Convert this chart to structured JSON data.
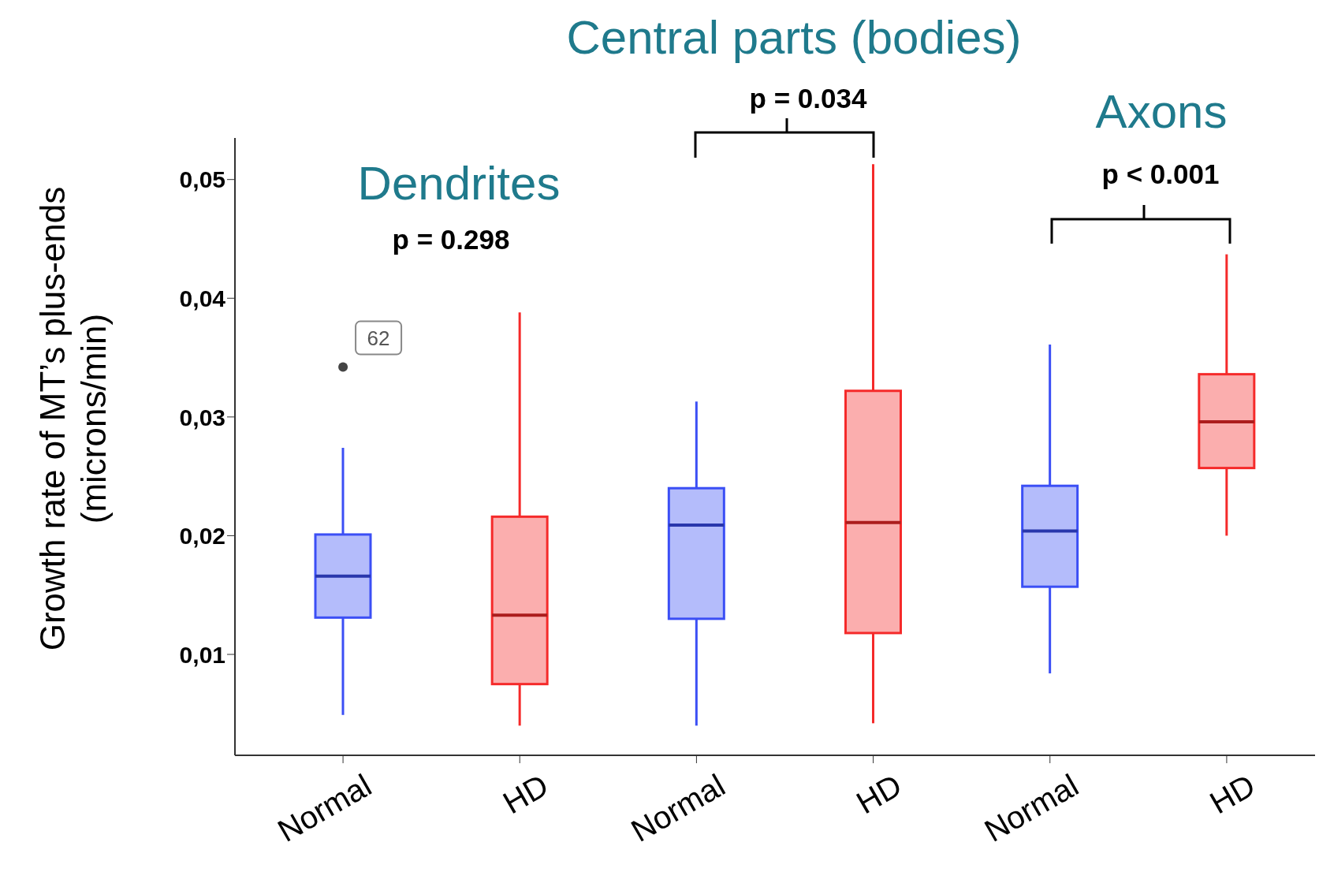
{
  "chart_data": {
    "type": "box",
    "ylabel": "Growth rate of MT’s plus-ends (microns/min)",
    "categories": [
      "Normal",
      "HD",
      "Normal",
      "HD",
      "Normal",
      "HD"
    ],
    "colors": [
      "#3b4ff5",
      "#f52a2a",
      "#3b4ff5",
      "#f52a2a",
      "#3b4ff5",
      "#f52a2a"
    ],
    "boxes": [
      {
        "low": 0.0049,
        "q1": 0.0131,
        "median": 0.0166,
        "q3": 0.0201,
        "high": 0.0274,
        "outliers": [
          0.0342
        ]
      },
      {
        "low": 0.004,
        "q1": 0.0075,
        "median": 0.0133,
        "q3": 0.0216,
        "high": 0.0388
      },
      {
        "low": 0.004,
        "q1": 0.013,
        "median": 0.0209,
        "q3": 0.024,
        "high": 0.0313
      },
      {
        "low": 0.0042,
        "q1": 0.0118,
        "median": 0.0211,
        "q3": 0.0322,
        "high": 0.0513
      },
      {
        "low": 0.0084,
        "q1": 0.0157,
        "median": 0.0204,
        "q3": 0.0242,
        "high": 0.0361
      },
      {
        "low": 0.02,
        "q1": 0.0257,
        "median": 0.0296,
        "q3": 0.0336,
        "high": 0.0437
      }
    ],
    "ylim": [
      0.0015,
      0.0535
    ],
    "yticks": [
      {
        "value": 0.01,
        "label": "0,01"
      },
      {
        "value": 0.02,
        "label": "0,02"
      },
      {
        "value": 0.03,
        "label": "0,03"
      },
      {
        "value": 0.04,
        "label": "0,04"
      },
      {
        "value": 0.05,
        "label": "0,05"
      }
    ],
    "grid": false,
    "annotations": [
      "Central parts (bodies)",
      "Dendrites",
      "Axons",
      "p = 0.298",
      "p = 0.034",
      "p < 0.001",
      "62"
    ]
  }
}
